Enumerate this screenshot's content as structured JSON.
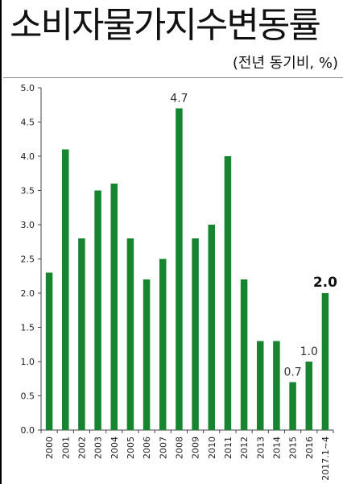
{
  "header": {
    "title": "소비자물가지수변동률",
    "subtitle": "(전년 동기비, %)"
  },
  "chart_data": {
    "type": "bar",
    "title": "소비자물가지수변동률",
    "subtitle": "(전년 동기비, %)",
    "xlabel": "",
    "ylabel": "",
    "ylim": [
      0,
      5.0
    ],
    "yticks": [
      "0.0",
      "0.5",
      "1.0",
      "1.5",
      "2.0",
      "2.5",
      "3.0",
      "3.5",
      "4.0",
      "4.5",
      "5.0"
    ],
    "grid": false,
    "legend": "none",
    "bar_color": "#17852f",
    "categories": [
      "2000",
      "2001",
      "2002",
      "2003",
      "2004",
      "2005",
      "2006",
      "2007",
      "2008",
      "2009",
      "2010",
      "2011",
      "2012",
      "2013",
      "2014",
      "2015",
      "2016",
      "2017.1~4"
    ],
    "values": [
      2.3,
      4.1,
      2.8,
      3.5,
      3.6,
      2.8,
      2.2,
      2.5,
      4.7,
      2.8,
      3.0,
      4.0,
      2.2,
      1.3,
      1.3,
      0.7,
      1.0,
      2.0
    ],
    "data_labels": [
      {
        "category": "2008",
        "text": "4.7",
        "bold": false
      },
      {
        "category": "2015",
        "text": "0.7",
        "bold": false
      },
      {
        "category": "2016",
        "text": "1.0",
        "bold": false
      },
      {
        "category": "2017.1~4",
        "text": "2.0",
        "bold": true
      }
    ]
  }
}
